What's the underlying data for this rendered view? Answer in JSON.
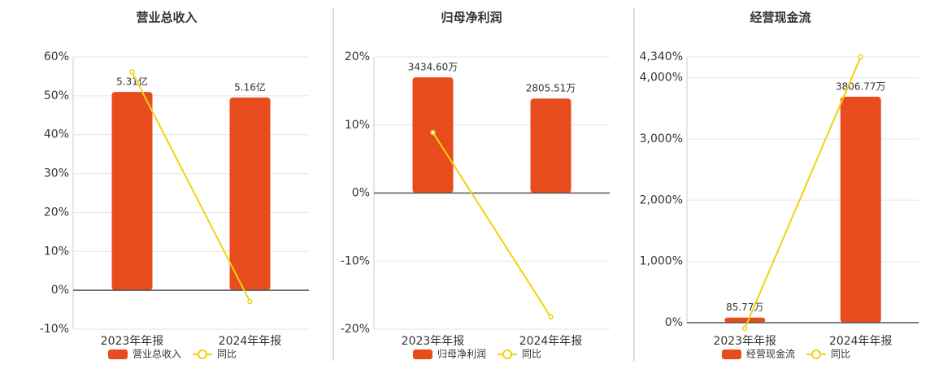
{
  "chart_data": [
    {
      "type": "bar",
      "title": "营业总收入",
      "categories": [
        "2023年年报",
        "2024年年报"
      ],
      "series": [
        {
          "name": "营业总收入",
          "color": "#e84c1d",
          "values": [
            5.31,
            5.16
          ],
          "value_labels": [
            "5.31亿",
            "5.16亿"
          ]
        },
        {
          "name": "同比",
          "type": "line",
          "color": "#f2d20f",
          "values": [
            56.1,
            -2.9
          ]
        }
      ],
      "ylim": [
        -10,
        60
      ],
      "yticks": [
        {
          "value": -10,
          "label": "-10%"
        },
        {
          "value": 0,
          "label": "0%"
        },
        {
          "value": 10,
          "label": "10%"
        },
        {
          "value": 20,
          "label": "20%"
        },
        {
          "value": 30,
          "label": "30%"
        },
        {
          "value": 40,
          "label": "40%"
        },
        {
          "value": 50,
          "label": "50%"
        },
        {
          "value": 60,
          "label": "60%"
        }
      ],
      "grid": true
    },
    {
      "type": "bar",
      "title": "归母净利润",
      "categories": [
        "2023年年报",
        "2024年年报"
      ],
      "series": [
        {
          "name": "归母净利润",
          "color": "#e84c1d",
          "values": [
            3434.6,
            2805.51
          ],
          "value_labels": [
            "3434.60万",
            "2805.51万"
          ]
        },
        {
          "name": "同比",
          "type": "line",
          "color": "#f2d20f",
          "values": [
            8.9,
            -18.2
          ]
        }
      ],
      "ylim": [
        -20,
        20
      ],
      "yticks": [
        {
          "value": -20,
          "label": "-20%"
        },
        {
          "value": -10,
          "label": "-10%"
        },
        {
          "value": 0,
          "label": "0%"
        },
        {
          "value": 10,
          "label": "10%"
        },
        {
          "value": 20,
          "label": "20%"
        }
      ],
      "grid": true
    },
    {
      "type": "bar",
      "title": "经营现金流",
      "categories": [
        "2023年年报",
        "2024年年报"
      ],
      "series": [
        {
          "name": "经营现金流",
          "color": "#e84c1d",
          "values": [
            85.77,
            3806.77
          ],
          "value_labels": [
            "85.77万",
            "3806.77万"
          ]
        },
        {
          "name": "同比",
          "type": "line",
          "color": "#f2d20f",
          "values": [
            -93,
            4340
          ]
        }
      ],
      "ylim": [
        0,
        4340
      ],
      "yticks": [
        {
          "value": 0,
          "label": "0%"
        },
        {
          "value": 1000,
          "label": "1,000%"
        },
        {
          "value": 2000,
          "label": "2,000%"
        },
        {
          "value": 3000,
          "label": "3,000%"
        },
        {
          "value": 4000,
          "label": "4,000%"
        },
        {
          "value": 4340,
          "label": "4,340%"
        }
      ],
      "grid": true
    }
  ]
}
